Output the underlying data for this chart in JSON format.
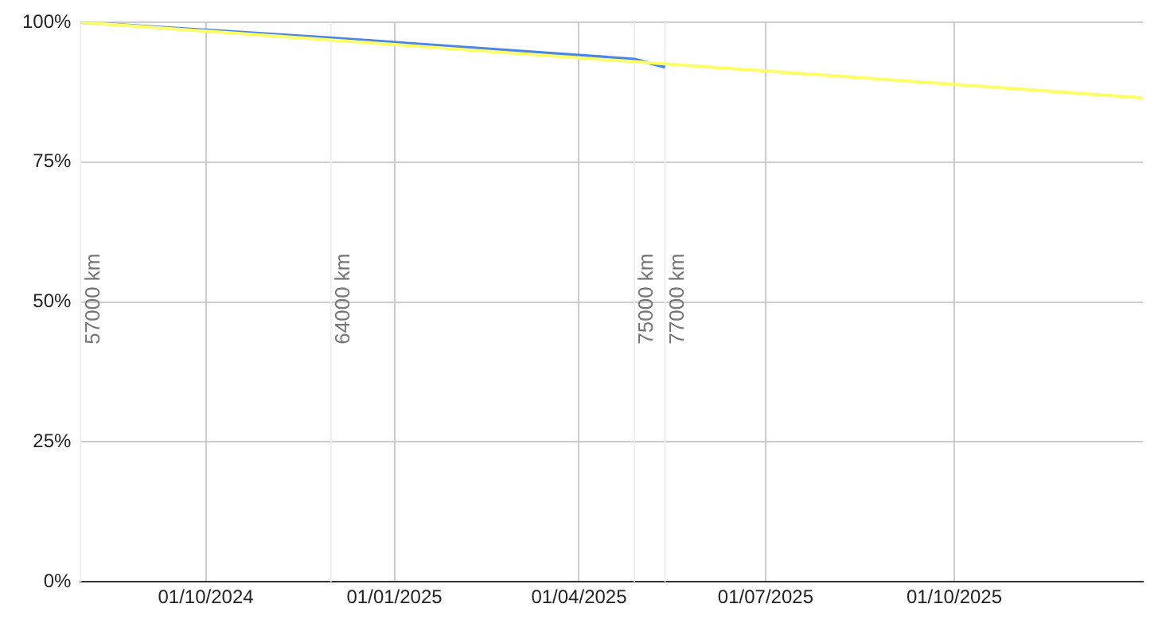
{
  "chart_data": {
    "type": "line",
    "x": [
      "2024-08-01",
      "2024-12-01",
      "2025-04-28",
      "2025-05-13"
    ],
    "series": [
      {
        "color": "#4a86e8",
        "values": [
          100,
          97.2,
          93.4,
          92.0
        ]
      },
      {
        "color": "#ffff66",
        "x": [
          "2024-08-01",
          "2026-01-01"
        ],
        "values": [
          100,
          86.5
        ]
      }
    ],
    "xlim": [
      "2024-08-01",
      "2026-01-01"
    ],
    "xticks": [
      {
        "value": "2024-10-01",
        "label": "01/10/2024"
      },
      {
        "value": "2025-01-01",
        "label": "01/01/2025"
      },
      {
        "value": "2025-04-01",
        "label": "01/04/2025"
      },
      {
        "value": "2025-07-01",
        "label": "01/07/2025"
      },
      {
        "value": "2025-10-01",
        "label": "01/10/2025"
      }
    ],
    "ylim": [
      0,
      100
    ],
    "yticks": [
      {
        "value": 0,
        "label": "0%"
      },
      {
        "value": 25,
        "label": "25%"
      },
      {
        "value": 50,
        "label": "50%"
      },
      {
        "value": 75,
        "label": "75%"
      },
      {
        "value": 100,
        "label": "100%"
      }
    ],
    "ref_lines": [
      {
        "axis": "x",
        "value": "2024-08-01",
        "label": "57000 km",
        "color": "#eeeeee"
      },
      {
        "axis": "x",
        "value": "2024-12-01",
        "label": "64000 km",
        "color": "#eeeeee"
      },
      {
        "axis": "x",
        "value": "2025-04-28",
        "label": "75000 km",
        "color": "#eeeeee"
      },
      {
        "axis": "x",
        "value": "2025-05-13",
        "label": "77000 km",
        "color": "#eeeeee"
      }
    ],
    "grid": true,
    "legend": false,
    "marker": "none",
    "line_style": "solid"
  }
}
